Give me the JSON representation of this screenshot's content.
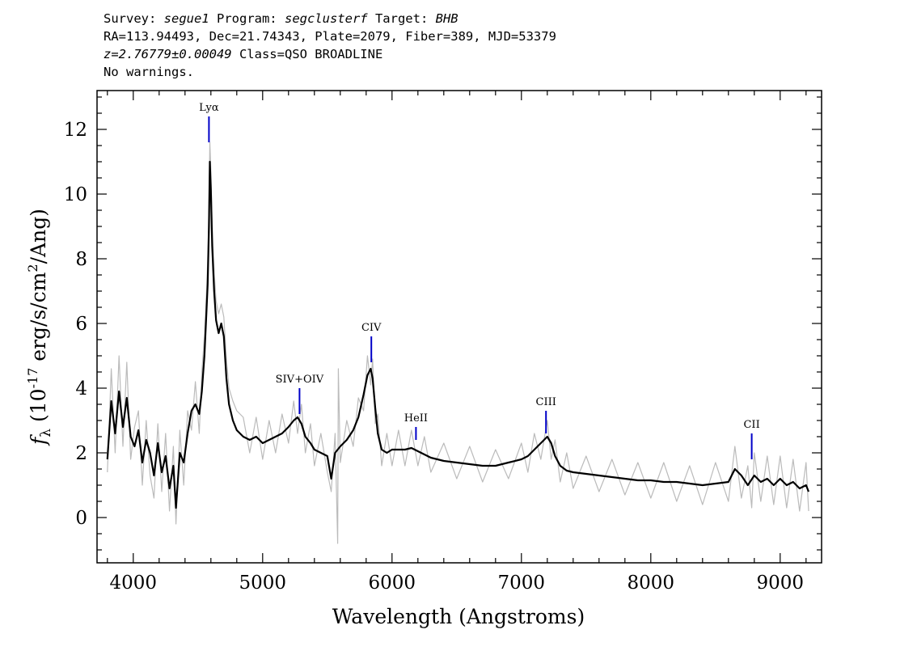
{
  "header": {
    "line1": {
      "survey_label": "Survey: ",
      "survey": "segue1",
      "program_label": " Program: ",
      "program": "segclusterf",
      "target_label": " Target: ",
      "target": "BHB"
    },
    "line2": "RA=113.94493, Dec=21.74343, Plate=2079, Fiber=389, MJD=53379",
    "line3": {
      "z": "z=2.76779±0.00049",
      "class": " Class=QSO BROADLINE"
    },
    "line4": "No warnings."
  },
  "chart_data": {
    "type": "line",
    "xlabel": "Wavelength (Angstroms)",
    "ylabel": "f_λ (10^-17 erg/s/cm^2/Ang)",
    "xlim": [
      3720,
      9320
    ],
    "ylim": [
      -1.4,
      13.2
    ],
    "x_ticks": [
      4000,
      5000,
      6000,
      7000,
      8000,
      9000
    ],
    "y_ticks": [
      0,
      2,
      4,
      6,
      8,
      10,
      12
    ],
    "series": [
      {
        "color": "#000000",
        "points": [
          [
            3800,
            1.8
          ],
          [
            3830,
            3.6
          ],
          [
            3860,
            2.6
          ],
          [
            3890,
            3.9
          ],
          [
            3920,
            2.8
          ],
          [
            3950,
            3.7
          ],
          [
            3980,
            2.5
          ],
          [
            4010,
            2.2
          ],
          [
            4040,
            2.7
          ],
          [
            4070,
            1.7
          ],
          [
            4100,
            2.4
          ],
          [
            4130,
            2.0
          ],
          [
            4160,
            1.3
          ],
          [
            4190,
            2.3
          ],
          [
            4220,
            1.4
          ],
          [
            4250,
            1.9
          ],
          [
            4280,
            0.9
          ],
          [
            4310,
            1.6
          ],
          [
            4330,
            0.3
          ],
          [
            4360,
            2.0
          ],
          [
            4390,
            1.7
          ],
          [
            4420,
            2.6
          ],
          [
            4450,
            3.3
          ],
          [
            4480,
            3.5
          ],
          [
            4510,
            3.2
          ],
          [
            4530,
            3.9
          ],
          [
            4550,
            5.0
          ],
          [
            4565,
            6.3
          ],
          [
            4575,
            7.2
          ],
          [
            4585,
            9.0
          ],
          [
            4592,
            11.0
          ],
          [
            4600,
            10.1
          ],
          [
            4610,
            8.4
          ],
          [
            4625,
            7.0
          ],
          [
            4640,
            6.1
          ],
          [
            4660,
            5.7
          ],
          [
            4680,
            6.0
          ],
          [
            4700,
            5.6
          ],
          [
            4720,
            4.3
          ],
          [
            4740,
            3.5
          ],
          [
            4770,
            3.0
          ],
          [
            4800,
            2.7
          ],
          [
            4850,
            2.5
          ],
          [
            4900,
            2.4
          ],
          [
            4950,
            2.5
          ],
          [
            5000,
            2.3
          ],
          [
            5050,
            2.4
          ],
          [
            5100,
            2.5
          ],
          [
            5150,
            2.6
          ],
          [
            5200,
            2.8
          ],
          [
            5240,
            3.0
          ],
          [
            5270,
            3.1
          ],
          [
            5300,
            2.9
          ],
          [
            5330,
            2.5
          ],
          [
            5370,
            2.3
          ],
          [
            5400,
            2.1
          ],
          [
            5450,
            2.0
          ],
          [
            5500,
            1.9
          ],
          [
            5530,
            1.2
          ],
          [
            5560,
            2.0
          ],
          [
            5600,
            2.2
          ],
          [
            5650,
            2.4
          ],
          [
            5700,
            2.7
          ],
          [
            5740,
            3.1
          ],
          [
            5780,
            3.8
          ],
          [
            5810,
            4.4
          ],
          [
            5835,
            4.6
          ],
          [
            5850,
            4.3
          ],
          [
            5870,
            3.4
          ],
          [
            5890,
            2.6
          ],
          [
            5920,
            2.1
          ],
          [
            5960,
            2.0
          ],
          [
            6000,
            2.1
          ],
          [
            6050,
            2.1
          ],
          [
            6100,
            2.1
          ],
          [
            6150,
            2.15
          ],
          [
            6200,
            2.05
          ],
          [
            6250,
            1.95
          ],
          [
            6300,
            1.85
          ],
          [
            6400,
            1.75
          ],
          [
            6500,
            1.7
          ],
          [
            6600,
            1.65
          ],
          [
            6700,
            1.6
          ],
          [
            6800,
            1.6
          ],
          [
            6900,
            1.7
          ],
          [
            7000,
            1.8
          ],
          [
            7050,
            1.9
          ],
          [
            7100,
            2.1
          ],
          [
            7150,
            2.3
          ],
          [
            7200,
            2.5
          ],
          [
            7230,
            2.3
          ],
          [
            7260,
            1.9
          ],
          [
            7300,
            1.6
          ],
          [
            7350,
            1.45
          ],
          [
            7400,
            1.4
          ],
          [
            7500,
            1.35
          ],
          [
            7600,
            1.3
          ],
          [
            7700,
            1.25
          ],
          [
            7800,
            1.2
          ],
          [
            7900,
            1.15
          ],
          [
            8000,
            1.15
          ],
          [
            8100,
            1.1
          ],
          [
            8200,
            1.1
          ],
          [
            8300,
            1.05
          ],
          [
            8400,
            1.0
          ],
          [
            8500,
            1.05
          ],
          [
            8600,
            1.1
          ],
          [
            8650,
            1.5
          ],
          [
            8700,
            1.3
          ],
          [
            8750,
            1.0
          ],
          [
            8800,
            1.3
          ],
          [
            8850,
            1.1
          ],
          [
            8900,
            1.2
          ],
          [
            8950,
            1.0
          ],
          [
            9000,
            1.2
          ],
          [
            9050,
            1.0
          ],
          [
            9100,
            1.1
          ],
          [
            9150,
            0.9
          ],
          [
            9200,
            1.0
          ],
          [
            9220,
            0.8
          ]
        ]
      },
      {
        "color": "#bbbbbb",
        "points": [
          [
            3800,
            1.4
          ],
          [
            3830,
            4.6
          ],
          [
            3860,
            2.0
          ],
          [
            3890,
            5.0
          ],
          [
            3920,
            2.2
          ],
          [
            3950,
            4.8
          ],
          [
            3980,
            1.8
          ],
          [
            4010,
            2.8
          ],
          [
            4040,
            3.3
          ],
          [
            4070,
            1.0
          ],
          [
            4100,
            3.0
          ],
          [
            4130,
            1.3
          ],
          [
            4160,
            0.6
          ],
          [
            4190,
            2.9
          ],
          [
            4220,
            0.8
          ],
          [
            4250,
            2.6
          ],
          [
            4280,
            0.2
          ],
          [
            4310,
            2.2
          ],
          [
            4330,
            -0.2
          ],
          [
            4360,
            2.7
          ],
          [
            4390,
            1.0
          ],
          [
            4420,
            3.3
          ],
          [
            4450,
            2.7
          ],
          [
            4480,
            4.2
          ],
          [
            4510,
            2.6
          ],
          [
            4530,
            4.5
          ],
          [
            4550,
            5.6
          ],
          [
            4565,
            6.9
          ],
          [
            4575,
            7.9
          ],
          [
            4585,
            9.6
          ],
          [
            4592,
            11.6
          ],
          [
            4600,
            10.7
          ],
          [
            4610,
            9.0
          ],
          [
            4625,
            7.6
          ],
          [
            4640,
            6.7
          ],
          [
            4660,
            6.3
          ],
          [
            4680,
            6.6
          ],
          [
            4700,
            6.2
          ],
          [
            4720,
            4.9
          ],
          [
            4740,
            4.0
          ],
          [
            4770,
            3.6
          ],
          [
            4800,
            3.3
          ],
          [
            4850,
            3.1
          ],
          [
            4900,
            2.0
          ],
          [
            4950,
            3.1
          ],
          [
            5000,
            1.8
          ],
          [
            5050,
            3.0
          ],
          [
            5100,
            2.0
          ],
          [
            5150,
            3.2
          ],
          [
            5200,
            2.3
          ],
          [
            5240,
            3.6
          ],
          [
            5270,
            2.6
          ],
          [
            5300,
            3.5
          ],
          [
            5330,
            2.0
          ],
          [
            5370,
            2.9
          ],
          [
            5400,
            1.6
          ],
          [
            5450,
            2.6
          ],
          [
            5500,
            1.4
          ],
          [
            5530,
            0.8
          ],
          [
            5560,
            2.6
          ],
          [
            5580,
            -0.8
          ],
          [
            5585,
            4.6
          ],
          [
            5600,
            1.7
          ],
          [
            5650,
            3.0
          ],
          [
            5700,
            2.2
          ],
          [
            5740,
            3.7
          ],
          [
            5780,
            3.3
          ],
          [
            5810,
            5.0
          ],
          [
            5835,
            4.1
          ],
          [
            5850,
            4.9
          ],
          [
            5870,
            2.9
          ],
          [
            5890,
            3.2
          ],
          [
            5920,
            1.6
          ],
          [
            5960,
            2.6
          ],
          [
            6000,
            1.6
          ],
          [
            6050,
            2.7
          ],
          [
            6100,
            1.6
          ],
          [
            6150,
            2.7
          ],
          [
            6200,
            1.6
          ],
          [
            6250,
            2.5
          ],
          [
            6300,
            1.4
          ],
          [
            6400,
            2.3
          ],
          [
            6500,
            1.2
          ],
          [
            6600,
            2.2
          ],
          [
            6700,
            1.1
          ],
          [
            6800,
            2.1
          ],
          [
            6900,
            1.2
          ],
          [
            7000,
            2.3
          ],
          [
            7050,
            1.4
          ],
          [
            7100,
            2.6
          ],
          [
            7150,
            1.8
          ],
          [
            7200,
            3.0
          ],
          [
            7230,
            1.8
          ],
          [
            7260,
            2.4
          ],
          [
            7300,
            1.1
          ],
          [
            7350,
            2.0
          ],
          [
            7400,
            0.9
          ],
          [
            7500,
            1.9
          ],
          [
            7600,
            0.8
          ],
          [
            7700,
            1.8
          ],
          [
            7800,
            0.7
          ],
          [
            7900,
            1.7
          ],
          [
            8000,
            0.6
          ],
          [
            8100,
            1.7
          ],
          [
            8200,
            0.5
          ],
          [
            8300,
            1.6
          ],
          [
            8400,
            0.4
          ],
          [
            8500,
            1.7
          ],
          [
            8600,
            0.5
          ],
          [
            8650,
            2.2
          ],
          [
            8700,
            0.6
          ],
          [
            8750,
            1.6
          ],
          [
            8780,
            0.3
          ],
          [
            8800,
            2.0
          ],
          [
            8850,
            0.5
          ],
          [
            8900,
            1.9
          ],
          [
            8950,
            0.4
          ],
          [
            9000,
            1.9
          ],
          [
            9050,
            0.3
          ],
          [
            9100,
            1.8
          ],
          [
            9150,
            0.2
          ],
          [
            9200,
            1.7
          ],
          [
            9220,
            0.2
          ]
        ]
      }
    ],
    "line_markers": [
      {
        "label": "Lyα",
        "x": 4585,
        "y_top": 12.4,
        "y_bottom": 11.6
      },
      {
        "label": "SIV+OIV",
        "x": 5285,
        "y_top": 4.0,
        "y_bottom": 3.2
      },
      {
        "label": "CIV",
        "x": 5840,
        "y_top": 5.6,
        "y_bottom": 4.8
      },
      {
        "label": "HeII",
        "x": 6185,
        "y_top": 2.8,
        "y_bottom": 2.4
      },
      {
        "label": "CIII",
        "x": 7190,
        "y_top": 3.3,
        "y_bottom": 2.6
      },
      {
        "label": "CII",
        "x": 8780,
        "y_top": 2.6,
        "y_bottom": 1.8
      }
    ]
  }
}
